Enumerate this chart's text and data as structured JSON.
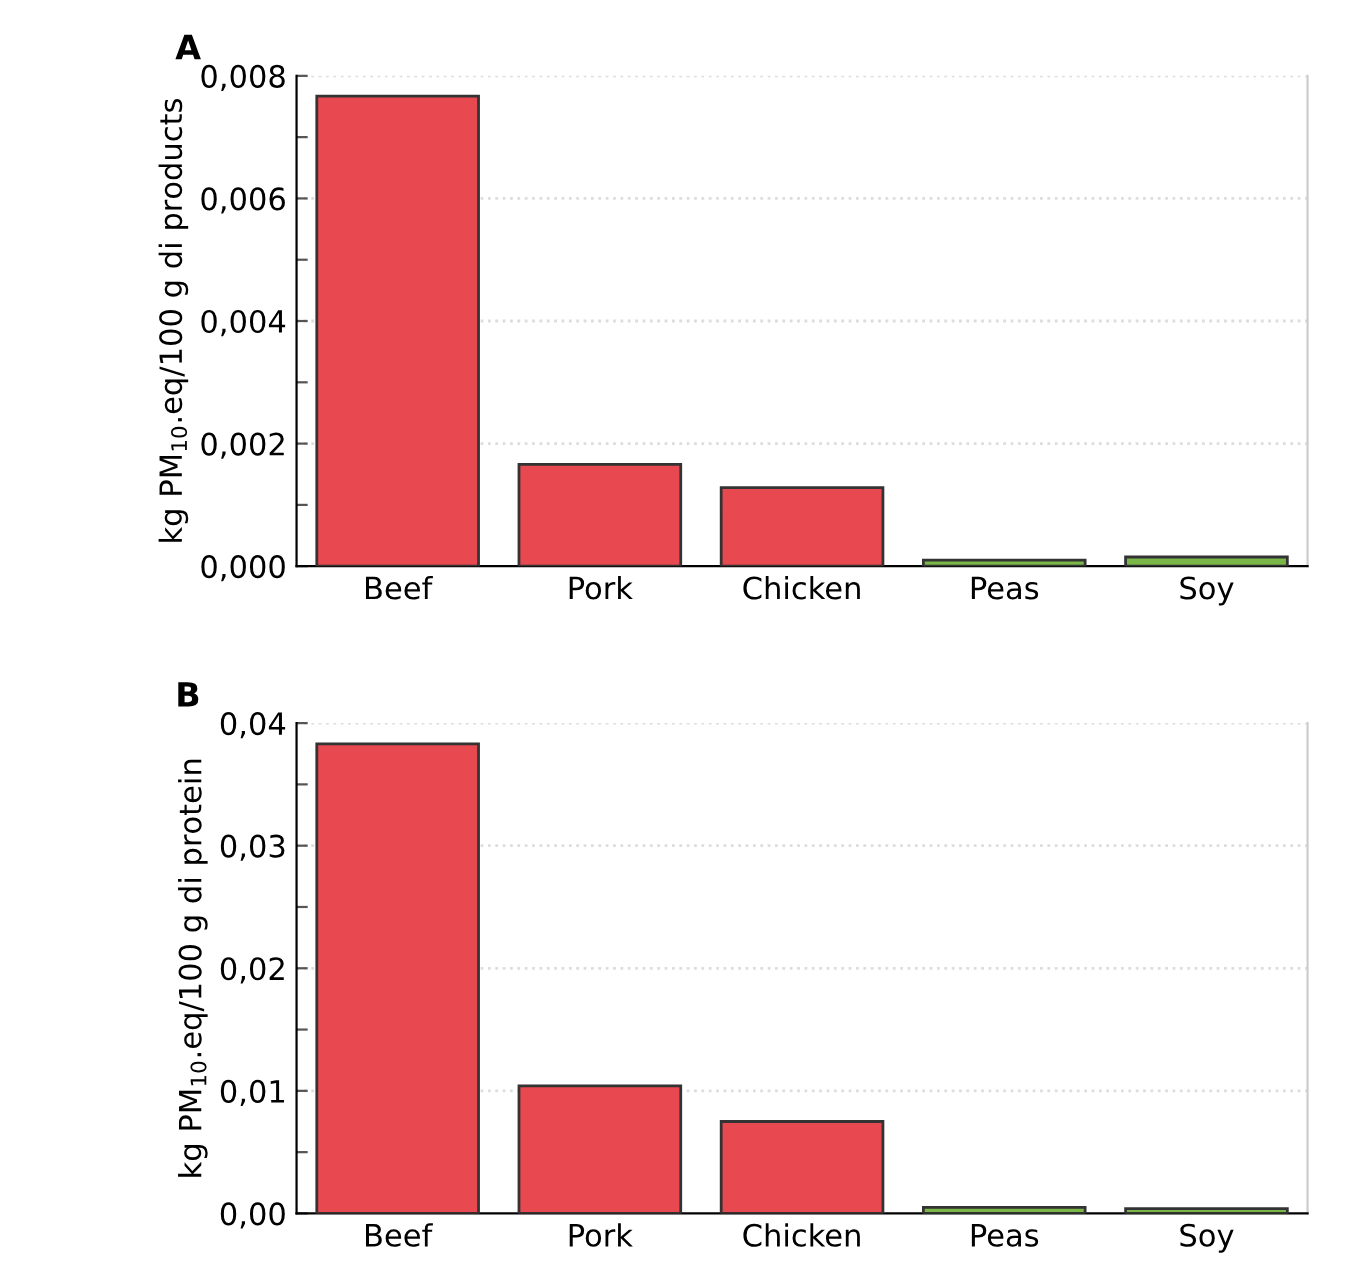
{
  "chart_data": [
    {
      "type": "bar",
      "title": "A",
      "ylabel": "kg PM$_{10}$.eq/100 g di products",
      "categories": [
        "Beef",
        "Pork",
        "Chicken",
        "Peas",
        "Soy"
      ],
      "values": [
        0.00767,
        0.00166,
        0.00128,
        0.0001,
        0.00015
      ],
      "colors": [
        "#e8484f",
        "#e8484f",
        "#e8484f",
        "#7ab648",
        "#7ab648"
      ],
      "ylim": [
        0,
        0.008
      ],
      "yticks": [
        {
          "value": 0,
          "label": "0,000"
        },
        {
          "value": 0.001,
          "label": null
        },
        {
          "value": 0.002,
          "label": "0,002"
        },
        {
          "value": 0.003,
          "label": null
        },
        {
          "value": 0.004,
          "label": "0,004"
        },
        {
          "value": 0.005,
          "label": null
        },
        {
          "value": 0.006,
          "label": "0,006"
        },
        {
          "value": 0.007,
          "label": null
        },
        {
          "value": 0.008,
          "label": "0,008"
        }
      ],
      "grid": "y"
    },
    {
      "type": "bar",
      "title": "B",
      "ylabel": "kg PM$_{10}$.eq/100 g di protein",
      "categories": [
        "Beef",
        "Pork",
        "Chicken",
        "Peas",
        "Soy"
      ],
      "values": [
        0.0383,
        0.0104,
        0.0075,
        0.0005,
        0.0004
      ],
      "colors": [
        "#e8484f",
        "#e8484f",
        "#e8484f",
        "#7ab648",
        "#7ab648"
      ],
      "ylim": [
        0,
        0.04
      ],
      "yticks": [
        {
          "value": 0,
          "label": "0,00"
        },
        {
          "value": 0.005,
          "label": null
        },
        {
          "value": 0.01,
          "label": "0,01"
        },
        {
          "value": 0.015,
          "label": null
        },
        {
          "value": 0.02,
          "label": "0,02"
        },
        {
          "value": 0.025,
          "label": null
        },
        {
          "value": 0.03,
          "label": "0,03"
        },
        {
          "value": 0.035,
          "label": null
        },
        {
          "value": 0.04,
          "label": "0,04"
        }
      ],
      "grid": "y"
    }
  ]
}
